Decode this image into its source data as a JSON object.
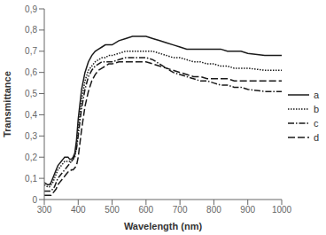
{
  "chart_data": {
    "type": "line",
    "xlabel": "Wavelength (nm)",
    "ylabel": "Transmittance",
    "xlim": [
      300,
      1000
    ],
    "ylim": [
      0,
      0.9
    ],
    "xticks": [
      300,
      400,
      500,
      600,
      700,
      800,
      900,
      1000
    ],
    "yticks": [
      0,
      {
        "value": 0.1,
        "label": "0,1"
      },
      {
        "value": 0.2,
        "label": "0,2"
      },
      {
        "value": 0.3,
        "label": "0,3"
      },
      {
        "value": 0.4,
        "label": "0,4"
      },
      {
        "value": 0.5,
        "label": "0,5"
      },
      {
        "value": 0.6,
        "label": "0,6"
      },
      {
        "value": 0.7,
        "label": "0,7"
      },
      {
        "value": 0.8,
        "label": "0,8"
      },
      {
        "value": 0.9,
        "label": "0,9"
      }
    ],
    "grid": false,
    "legend": "right",
    "x": [
      300,
      310,
      315,
      320,
      325,
      330,
      335,
      340,
      345,
      350,
      355,
      360,
      365,
      370,
      375,
      380,
      385,
      390,
      395,
      400,
      410,
      420,
      430,
      440,
      450,
      460,
      470,
      480,
      490,
      500,
      520,
      540,
      560,
      580,
      600,
      620,
      640,
      660,
      680,
      700,
      720,
      740,
      760,
      780,
      800,
      820,
      840,
      860,
      880,
      900,
      950,
      1000
    ],
    "series": [
      {
        "name": "a",
        "color": "#1a1a1a",
        "line_style": "solid",
        "values": [
          0.08,
          0.07,
          0.07,
          0.08,
          0.1,
          0.12,
          0.14,
          0.16,
          0.17,
          0.18,
          0.19,
          0.2,
          0.2,
          0.2,
          0.19,
          0.19,
          0.2,
          0.22,
          0.28,
          0.38,
          0.52,
          0.6,
          0.65,
          0.68,
          0.7,
          0.71,
          0.72,
          0.73,
          0.73,
          0.73,
          0.75,
          0.76,
          0.77,
          0.77,
          0.77,
          0.76,
          0.75,
          0.74,
          0.73,
          0.72,
          0.71,
          0.71,
          0.71,
          0.71,
          0.71,
          0.71,
          0.7,
          0.7,
          0.7,
          0.69,
          0.68,
          0.68
        ]
      },
      {
        "name": "b",
        "color": "#1a1a1a",
        "line_style": "dotted",
        "values": [
          0.07,
          0.06,
          0.06,
          0.07,
          0.08,
          0.1,
          0.12,
          0.14,
          0.15,
          0.16,
          0.17,
          0.18,
          0.18,
          0.18,
          0.18,
          0.18,
          0.19,
          0.2,
          0.25,
          0.33,
          0.47,
          0.56,
          0.61,
          0.63,
          0.65,
          0.66,
          0.67,
          0.67,
          0.68,
          0.68,
          0.69,
          0.7,
          0.7,
          0.7,
          0.7,
          0.7,
          0.69,
          0.68,
          0.67,
          0.67,
          0.66,
          0.65,
          0.65,
          0.64,
          0.64,
          0.63,
          0.63,
          0.62,
          0.62,
          0.62,
          0.61,
          0.61
        ]
      },
      {
        "name": "c",
        "color": "#1a1a1a",
        "line_style": "dashdot",
        "values": [
          0.04,
          0.04,
          0.04,
          0.04,
          0.05,
          0.06,
          0.08,
          0.1,
          0.11,
          0.12,
          0.13,
          0.14,
          0.15,
          0.16,
          0.17,
          0.18,
          0.19,
          0.21,
          0.24,
          0.3,
          0.43,
          0.52,
          0.58,
          0.61,
          0.63,
          0.64,
          0.65,
          0.65,
          0.65,
          0.65,
          0.66,
          0.67,
          0.67,
          0.67,
          0.67,
          0.66,
          0.64,
          0.62,
          0.6,
          0.59,
          0.58,
          0.57,
          0.56,
          0.56,
          0.55,
          0.54,
          0.54,
          0.53,
          0.53,
          0.52,
          0.51,
          0.51
        ]
      },
      {
        "name": "d",
        "color": "#1a1a1a",
        "line_style": "dashed",
        "values": [
          0.02,
          0.02,
          0.02,
          0.02,
          0.03,
          0.04,
          0.05,
          0.07,
          0.08,
          0.09,
          0.1,
          0.11,
          0.12,
          0.13,
          0.13,
          0.14,
          0.14,
          0.15,
          0.16,
          0.2,
          0.33,
          0.44,
          0.51,
          0.56,
          0.59,
          0.61,
          0.62,
          0.63,
          0.64,
          0.64,
          0.65,
          0.65,
          0.65,
          0.65,
          0.65,
          0.64,
          0.63,
          0.62,
          0.61,
          0.6,
          0.59,
          0.58,
          0.58,
          0.57,
          0.57,
          0.57,
          0.57,
          0.56,
          0.56,
          0.56,
          0.56,
          0.56
        ]
      }
    ]
  }
}
